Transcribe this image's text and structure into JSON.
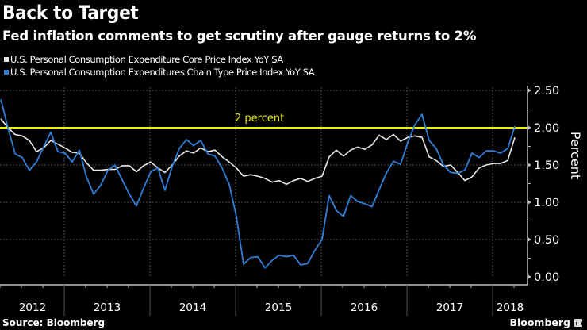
{
  "header": {
    "title": "Back to Target",
    "subtitle": "Fed inflation comments to get scrutiny after gauge returns to 2%"
  },
  "footer": {
    "source": "Source: Bloomberg",
    "brand": "Bloomberg"
  },
  "colors": {
    "background": "#000000",
    "core_series": "#e8e8e8",
    "headline_series": "#2f7fd8",
    "target_line": "#f2f200",
    "grid": "#555555",
    "axis": "#cfcfcf"
  },
  "chart_data": {
    "type": "line",
    "title": "Back to Target",
    "subtitle": "Fed inflation comments to get scrutiny after gauge returns to 2%",
    "xlabel": "",
    "ylabel": "Percent",
    "ylim": [
      0,
      2.5
    ],
    "yticks": [
      "0.00",
      "0.50",
      "1.00",
      "1.50",
      "2.00",
      "2.50"
    ],
    "ytick_values": [
      0,
      0.5,
      1.0,
      1.5,
      2.0,
      2.5
    ],
    "xticks": [
      "2012",
      "2013",
      "2014",
      "2015",
      "2016",
      "2017",
      "2018"
    ],
    "x_start": "2012-04",
    "x_end": "2018-04",
    "frequency": "monthly",
    "grid": true,
    "legend_position": "top-left",
    "annotations": [
      {
        "label": "2 percent",
        "y": 2.0,
        "type": "horizontal-line"
      }
    ],
    "series": [
      {
        "name": "U.S. Personal Consumption Expenditure Core Price Index YoY SA",
        "color": "#e8e8e8",
        "values": [
          2.12,
          2.0,
          1.91,
          1.89,
          1.83,
          1.68,
          1.73,
          1.83,
          1.78,
          1.73,
          1.67,
          1.66,
          1.53,
          1.43,
          1.43,
          1.44,
          1.44,
          1.49,
          1.49,
          1.41,
          1.49,
          1.54,
          1.46,
          1.4,
          1.5,
          1.62,
          1.69,
          1.66,
          1.73,
          1.68,
          1.7,
          1.61,
          1.54,
          1.46,
          1.35,
          1.37,
          1.35,
          1.32,
          1.27,
          1.29,
          1.24,
          1.29,
          1.32,
          1.28,
          1.32,
          1.35,
          1.61,
          1.7,
          1.62,
          1.7,
          1.74,
          1.71,
          1.77,
          1.9,
          1.84,
          1.91,
          1.82,
          1.87,
          1.89,
          1.87,
          1.61,
          1.56,
          1.48,
          1.5,
          1.4,
          1.29,
          1.34,
          1.46,
          1.5,
          1.52,
          1.52,
          1.56,
          1.87
        ]
      },
      {
        "name": "U.S. Personal Consumption Expenditures Chain Type Price Index YoY SA",
        "color": "#2f7fd8",
        "values": [
          2.38,
          2.0,
          1.65,
          1.6,
          1.43,
          1.54,
          1.74,
          1.94,
          1.68,
          1.66,
          1.54,
          1.7,
          1.34,
          1.11,
          1.23,
          1.43,
          1.5,
          1.3,
          1.11,
          0.95,
          1.19,
          1.41,
          1.46,
          1.16,
          1.48,
          1.72,
          1.84,
          1.76,
          1.83,
          1.65,
          1.62,
          1.46,
          1.24,
          0.81,
          0.17,
          0.26,
          0.27,
          0.12,
          0.22,
          0.29,
          0.27,
          0.29,
          0.16,
          0.18,
          0.36,
          0.5,
          1.09,
          0.89,
          0.81,
          1.09,
          1.01,
          0.98,
          0.94,
          1.17,
          1.39,
          1.55,
          1.51,
          1.8,
          2.04,
          2.18,
          1.83,
          1.72,
          1.5,
          1.4,
          1.39,
          1.43,
          1.66,
          1.6,
          1.69,
          1.69,
          1.66,
          1.72,
          2.02
        ]
      }
    ]
  }
}
